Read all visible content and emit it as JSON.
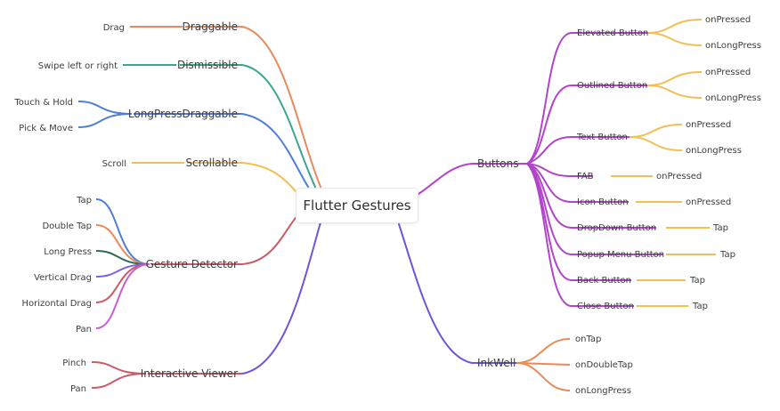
{
  "root": "Flutter Gestures",
  "colors": {
    "orange": "#e98a5a",
    "teal": "#3fa58d",
    "blue": "#4f7fd6",
    "yellow": "#f2bf56",
    "red": "#c85b66",
    "indigo": "#6d55de",
    "purple": "#b244cc",
    "dark_green": "#2f6b5c",
    "violet": "#7c63e6",
    "magenta": "#c85fd0"
  },
  "left": {
    "draggable": {
      "label": "Draggable",
      "children": [
        "Drag"
      ]
    },
    "dismissible": {
      "label": "Dismissible",
      "children": [
        "Swipe left or right"
      ]
    },
    "longpressdraggable": {
      "label": "LongPressDraggable",
      "children": [
        "Touch & Hold",
        "Pick & Move"
      ]
    },
    "scrollable": {
      "label": "Scrollable",
      "children": [
        "Scroll"
      ]
    },
    "gesture_detector": {
      "label": "Gesture Detector",
      "children": [
        "Tap",
        "Double Tap",
        "Long Press",
        "Vertical Drag",
        "Horizontal Drag",
        "Pan"
      ]
    },
    "interactive_viewer": {
      "label": "Interactive Viewer",
      "children": [
        "Pinch",
        "Pan"
      ]
    }
  },
  "right": {
    "buttons": {
      "label": "Buttons",
      "children": [
        {
          "label": "Elevated Button",
          "events": [
            "onPressed",
            "onLongPress"
          ]
        },
        {
          "label": "Outlined Button",
          "events": [
            "onPressed",
            "onLongPress"
          ]
        },
        {
          "label": "Text Button",
          "events": [
            "onPressed",
            "onLongPress"
          ]
        },
        {
          "label": "FAB",
          "events": [
            "onPressed"
          ]
        },
        {
          "label": "Icon Button",
          "events": [
            "onPressed"
          ]
        },
        {
          "label": "DropDown Button",
          "events": [
            "Tap"
          ]
        },
        {
          "label": "Popup Menu Button",
          "events": [
            "Tap"
          ]
        },
        {
          "label": "Back Button",
          "events": [
            "Tap"
          ]
        },
        {
          "label": "Close Button",
          "events": [
            "Tap"
          ]
        }
      ]
    },
    "inkwell": {
      "label": "InkWell",
      "children": [
        "onTap",
        "onDoubleTap",
        "onLongPress"
      ]
    }
  }
}
